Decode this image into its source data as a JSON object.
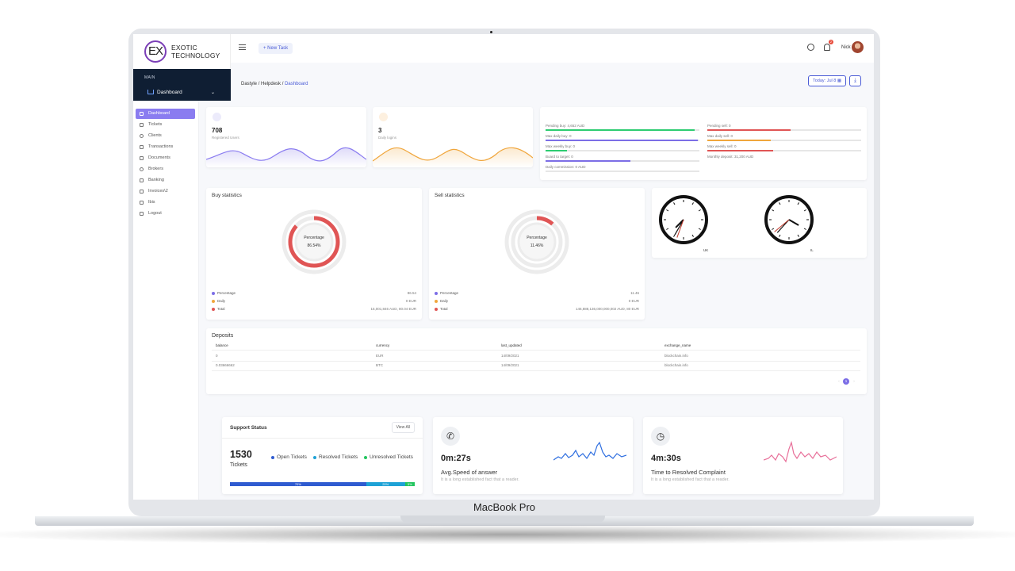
{
  "app": {
    "logo_mark": "EX",
    "logo_line1": "EXOTIC",
    "logo_line2": "TECHNOLOGY",
    "new_task_label": "New Task",
    "user_name": "Nick",
    "notification_count": "2",
    "device_label": "MacBook Pro"
  },
  "main_nav": {
    "section_label": "MAIN",
    "dashboard_label": "Dashboard"
  },
  "breadcrumb": {
    "item1": "Dastyle",
    "sep": "/",
    "item2": "Helpdesk",
    "item3": "Dashboard"
  },
  "toolbar": {
    "today_label": "Today: Jul 8"
  },
  "sidebar": {
    "items": [
      {
        "label": "Dashboard",
        "icon": "home-icon",
        "active": true
      },
      {
        "label": "Tickets",
        "icon": "monitor-icon"
      },
      {
        "label": "Clients",
        "icon": "user-icon"
      },
      {
        "label": "Transactions",
        "icon": "send-icon"
      },
      {
        "label": "Documents",
        "icon": "document-icon"
      },
      {
        "label": "Brokers",
        "icon": "link-icon"
      },
      {
        "label": "Banking",
        "icon": "bank-icon"
      },
      {
        "label": "Invoices\\2",
        "icon": "invoice-icon"
      },
      {
        "label": "Ibis",
        "icon": "card-icon"
      },
      {
        "label": "Logout",
        "icon": "lock-icon"
      }
    ]
  },
  "stats": [
    {
      "value": "708",
      "label": "Registered Users",
      "color": "#7c6ee6"
    },
    {
      "value": "3",
      "label": "Daily logins",
      "color": "#f0a63c"
    }
  ],
  "limits_left": [
    {
      "label": "Pending buy: 4,652 AUD",
      "color": "#2ecc71",
      "fill": 0.97
    },
    {
      "label": "Max daily buy: 0",
      "color": "#7c6ee6",
      "fill": 0.99
    },
    {
      "label": "Max weekly buy: 0",
      "color": "#2ecc71",
      "fill": 0.14
    },
    {
      "label": "Board to target: 0",
      "color": "#7c6ee6",
      "fill": 0.55
    },
    {
      "label": "Daily commission: 0 AUD",
      "color": "#e6e6e6",
      "fill": 0
    }
  ],
  "limits_right": [
    {
      "label": "Pending sell: 0",
      "color": "#e05555",
      "fill": 0.54
    },
    {
      "label": "Max daily sell: 0",
      "color": "#f0a63c",
      "fill": 0.41
    },
    {
      "label": "Max weekly sell: 0",
      "color": "#e05555",
      "fill": 0.43
    },
    {
      "label": "Monthly deposit: 31,200 AUD",
      "color": "#e6e6e6",
      "fill": 0
    }
  ],
  "buy_stats": {
    "title": "Buy statistics",
    "center_label": "Percentage",
    "center_value": "86.54%",
    "fraction": 0.8654,
    "legend": [
      {
        "name": "Percentage",
        "value": "86.54",
        "color": "#7c6ee6"
      },
      {
        "name": "Daily",
        "value": "0 EUR",
        "color": "#f0a63c"
      },
      {
        "name": "Total",
        "value": "15,001,846 AUD, 80.04 EUR",
        "color": "#e05555"
      }
    ]
  },
  "sell_stats": {
    "title": "Sell statistics",
    "center_label": "Percentage",
    "center_value": "11.46%",
    "fraction": 0.1146,
    "legend": [
      {
        "name": "Percentage",
        "value": "11.46",
        "color": "#7c6ee6"
      },
      {
        "name": "Daily",
        "value": "0 EUR",
        "color": "#f0a63c"
      },
      {
        "name": "Total",
        "value": "146,888,136,000,000,002 AUD, 80 EUR",
        "color": "#e05555"
      }
    ]
  },
  "clocks": [
    {
      "label": "UK",
      "hour": 7.5,
      "minute": 35
    },
    {
      "label": "IL",
      "hour": 4.0,
      "minute": 37
    }
  ],
  "deposits": {
    "title": "Deposits",
    "columns": [
      "balance",
      "currency",
      "last_updated",
      "exchange_name"
    ],
    "rows": [
      [
        "0",
        "EUR",
        "14/09/2021",
        "blockchain.info"
      ],
      [
        "0.03666662",
        "BTC",
        "14/09/2021",
        "blockchain.info"
      ]
    ],
    "current_page": "1"
  },
  "support": {
    "title": "Support Status",
    "view_all": "View All",
    "count": "1530",
    "count_label": "Tickets",
    "legend": [
      {
        "name": "Open Tickets",
        "color": "#2f5bd0"
      },
      {
        "name": "Resolved Tickets",
        "color": "#1ea2d6"
      },
      {
        "name": "Unresolved Tickets",
        "color": "#22c55e"
      }
    ],
    "bars": [
      {
        "label": "70%",
        "value": 70,
        "color": "#2f5bd0"
      },
      {
        "label": "20%",
        "value": 20,
        "color": "#1ea2d6"
      },
      {
        "label": "5%",
        "value": 5,
        "color": "#22c55e"
      }
    ]
  },
  "speed": {
    "icon": "phone-icon",
    "value": "0m:27s",
    "title": "Avg.Speed of answer",
    "subtitle": "It is a long established fact that a reader.",
    "line_color": "#2f6fe0"
  },
  "resolve": {
    "icon": "clock-icon",
    "value": "4m:30s",
    "title": "Time to Resolved Complaint",
    "subtitle": "It is a long established fact that a reader.",
    "line_color": "#e8709a"
  }
}
